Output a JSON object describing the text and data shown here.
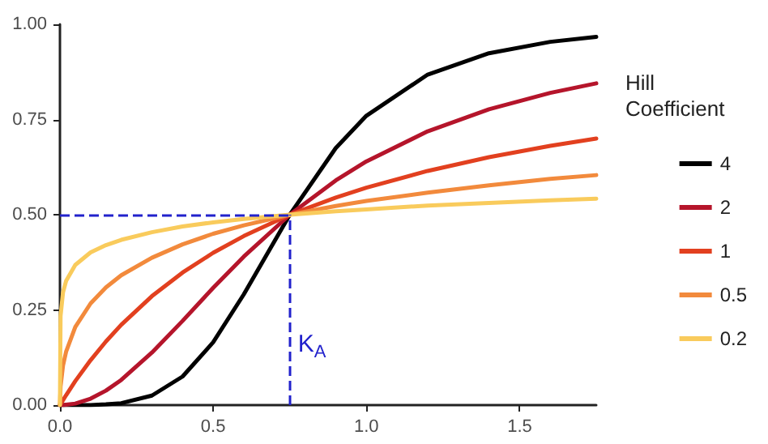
{
  "chart_data": {
    "type": "line",
    "x": [
      0,
      0.002,
      0.01,
      0.02,
      0.05,
      0.1,
      0.15,
      0.2,
      0.3,
      0.4,
      0.5,
      0.6,
      0.75,
      0.9,
      1.0,
      1.2,
      1.4,
      1.6,
      1.75
    ],
    "series": [
      {
        "name": "4",
        "color": "#000000",
        "values": [
          0,
          0,
          0,
          0,
          0,
          0,
          0.002,
          0.005,
          0.025,
          0.075,
          0.165,
          0.291,
          0.5,
          0.675,
          0.76,
          0.868,
          0.924,
          0.954,
          0.967
        ]
      },
      {
        "name": "2",
        "color": "#b5152b",
        "values": [
          0,
          0,
          0,
          0.001,
          0.004,
          0.017,
          0.038,
          0.066,
          0.138,
          0.221,
          0.308,
          0.39,
          0.5,
          0.59,
          0.64,
          0.719,
          0.777,
          0.82,
          0.845
        ]
      },
      {
        "name": "1",
        "color": "#e2401f",
        "values": [
          0,
          0.003,
          0.013,
          0.026,
          0.063,
          0.118,
          0.167,
          0.211,
          0.286,
          0.348,
          0.4,
          0.444,
          0.5,
          0.545,
          0.571,
          0.615,
          0.651,
          0.681,
          0.7
        ]
      },
      {
        "name": "0.5",
        "color": "#f28a3c",
        "values": [
          0,
          0.049,
          0.104,
          0.14,
          0.205,
          0.267,
          0.309,
          0.341,
          0.387,
          0.422,
          0.45,
          0.472,
          0.5,
          0.523,
          0.536,
          0.558,
          0.577,
          0.594,
          0.604
        ]
      },
      {
        "name": "0.2",
        "color": "#f9cb5c",
        "values": [
          0,
          0.234,
          0.296,
          0.326,
          0.368,
          0.401,
          0.42,
          0.434,
          0.454,
          0.469,
          0.48,
          0.489,
          0.5,
          0.509,
          0.514,
          0.524,
          0.531,
          0.538,
          0.542
        ]
      }
    ],
    "xlim": [
      0,
      1.75
    ],
    "xticks": [
      {
        "value": 0,
        "label": "0.0"
      },
      0.5,
      {
        "value": 1,
        "label": "1.0"
      },
      1.5
    ],
    "ylim": [
      0,
      1
    ],
    "yticks": [
      {
        "value": 0,
        "label": "0.00"
      },
      0.25,
      {
        "value": 0.5,
        "label": "0.50"
      },
      0.75,
      {
        "value": 1,
        "label": "1.00"
      }
    ],
    "ref_lines": [
      {
        "axis": "y",
        "value": 0.5,
        "color": "#2222cc",
        "line_style": "dashed"
      },
      {
        "axis": "x",
        "value": 0.75,
        "label": "K$_{A}$",
        "color": "#2222cc",
        "line_style": "dashed"
      }
    ],
    "legend_title": "Hill Coefficient",
    "legend": "right",
    "grid": false,
    "marker": "none",
    "line_style": "solid"
  }
}
